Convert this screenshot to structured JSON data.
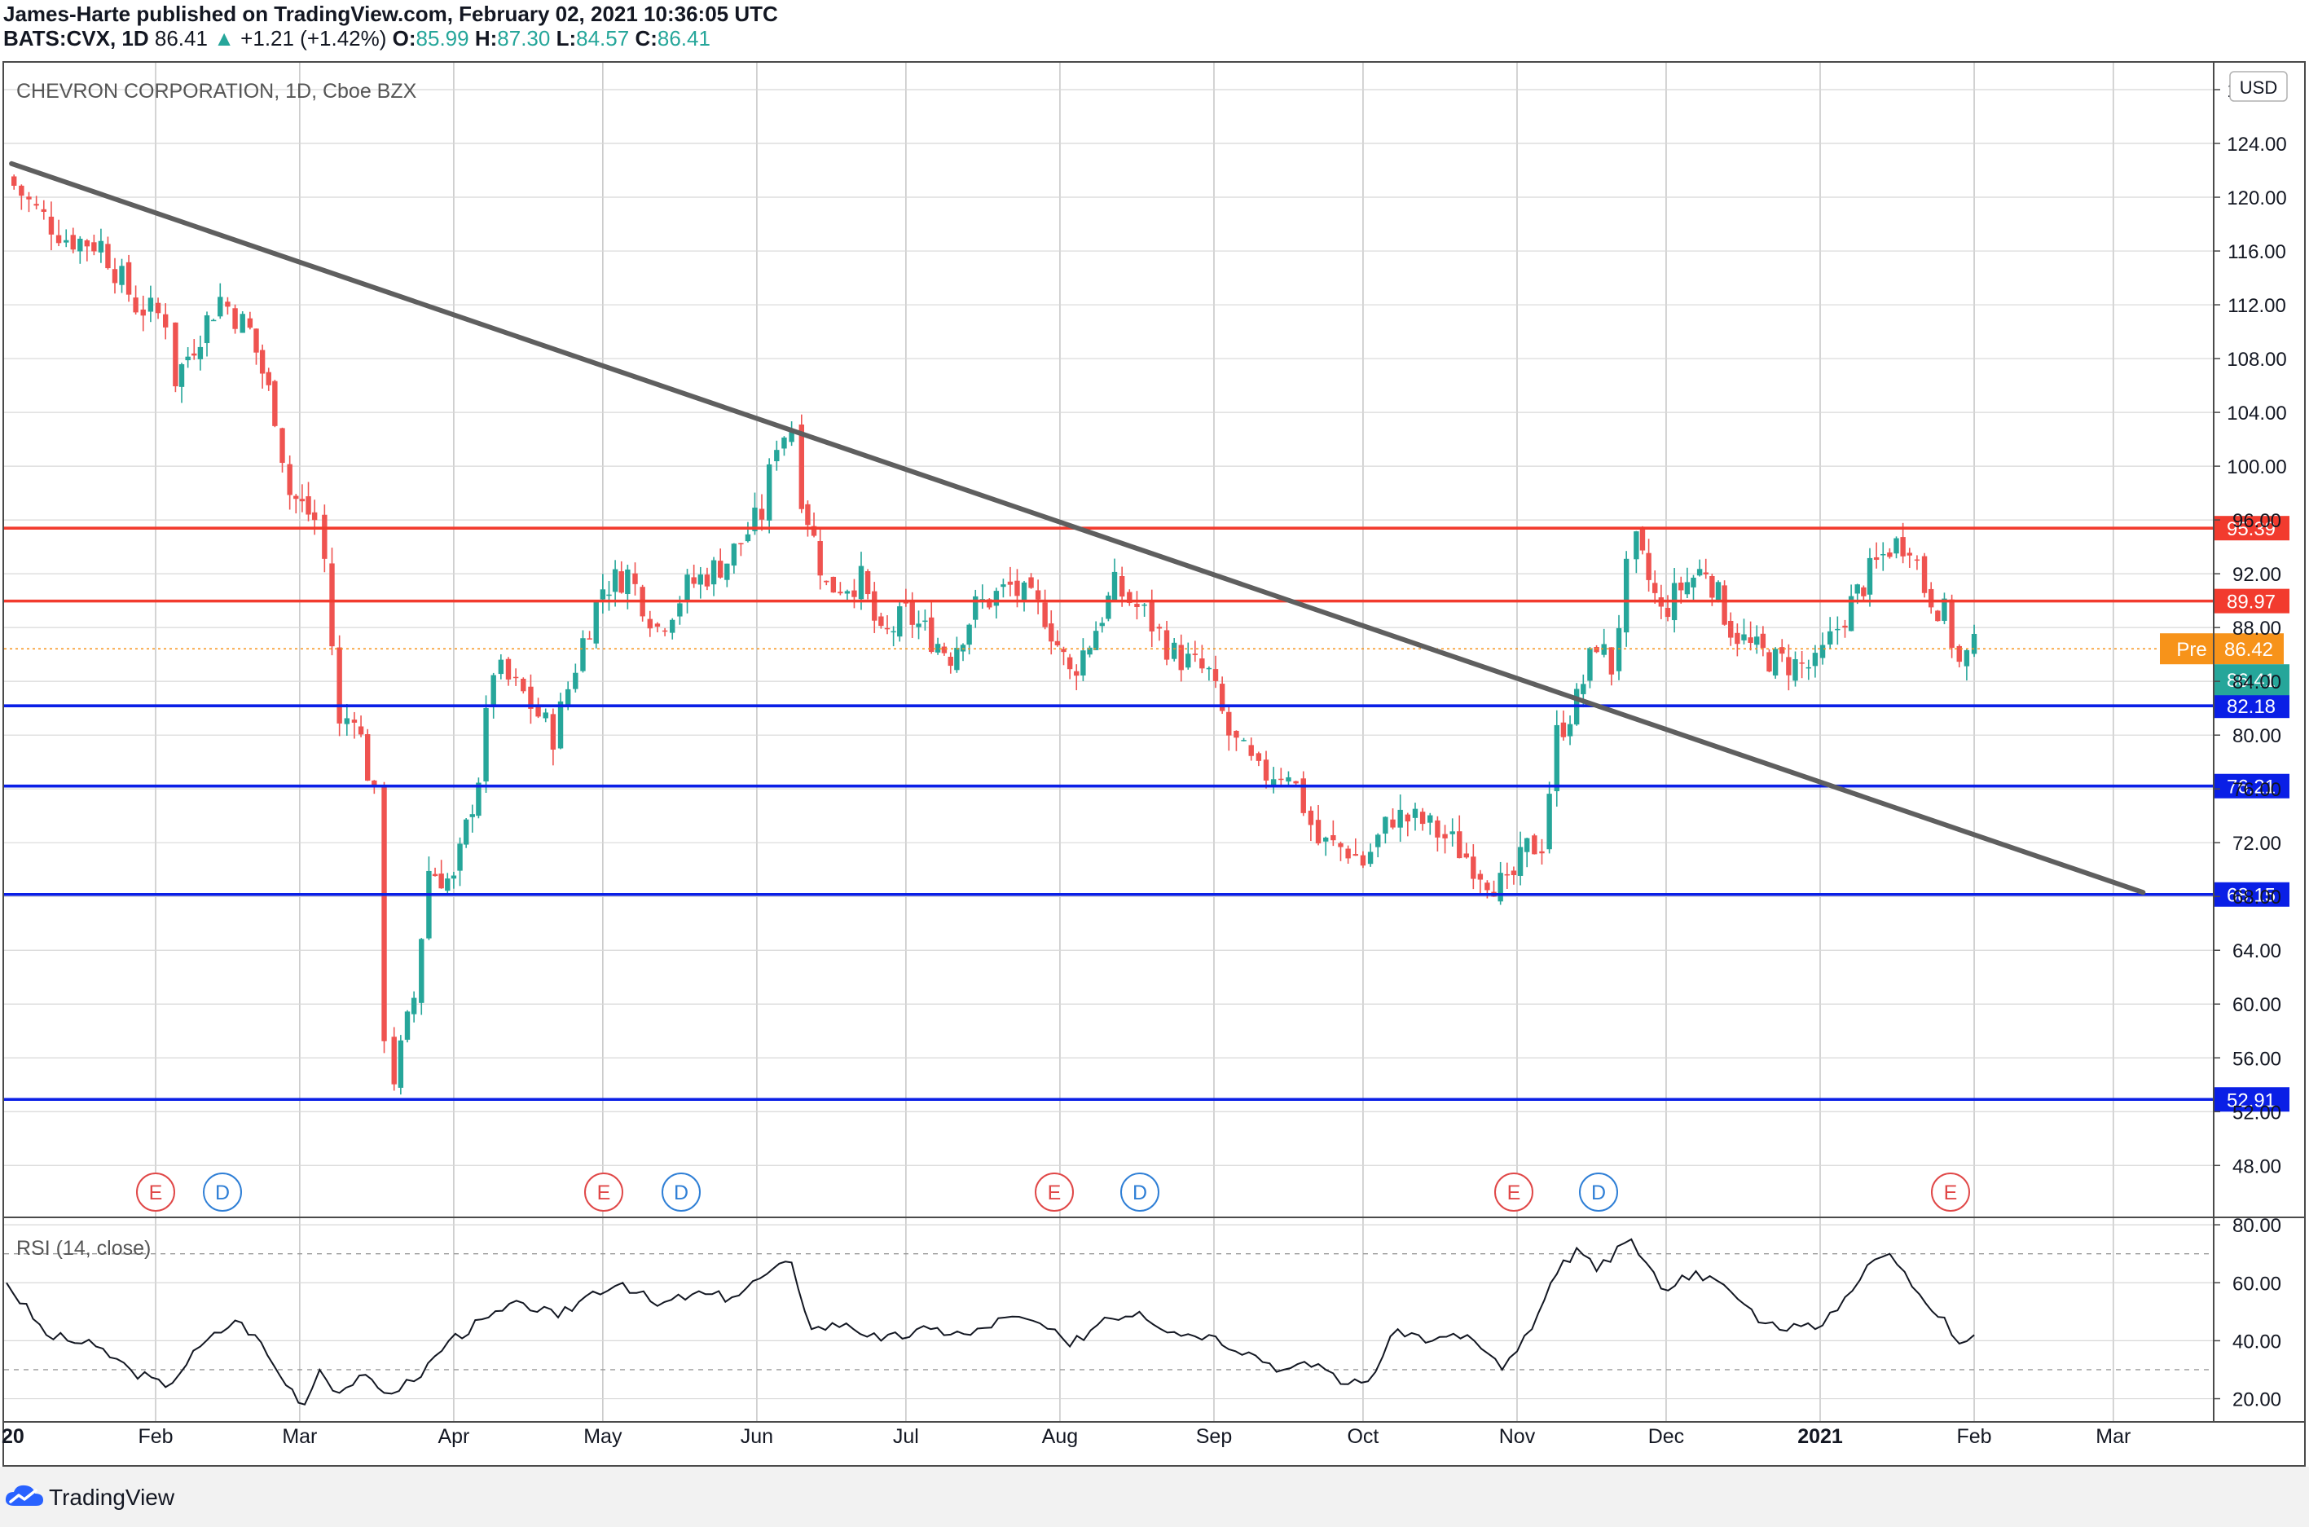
{
  "header": {
    "publisher_line": "James-Harte published on TradingView.com, February 02, 2021 10:36:05 UTC",
    "symbol": "BATS:CVX, 1D",
    "last": "86.41",
    "change": "+1.21 (+1.42%)",
    "open_label": "O:",
    "open": "85.99",
    "high_label": "H:",
    "high": "87.30",
    "low_label": "L:",
    "low": "84.57",
    "close_label": "C:",
    "close": "86.41"
  },
  "chart_title": "CHEVRON CORPORATION, 1D, Cboe BZX",
  "currency_button": "USD",
  "rsi_label": "RSI (14, close)",
  "footer_brand": "TradingView",
  "colors": {
    "up": "#26a69a",
    "down": "#ef5350",
    "resistance": "#f23b2e",
    "support": "#0a1fe6",
    "trendline": "#5f5f5f",
    "pre_badge": "#f7931a"
  },
  "chart_data": [
    {
      "type": "candlestick",
      "title": "CHEVRON CORPORATION, 1D, Cboe BZX",
      "x_tick_labels": [
        "20",
        "Feb",
        "Mar",
        "Apr",
        "May",
        "Jun",
        "Jul",
        "Aug",
        "Sep",
        "Oct",
        "Nov",
        "Dec",
        "2021",
        "Feb",
        "Mar"
      ],
      "y_tick_labels": [
        "128.00",
        "124.00",
        "120.00",
        "116.00",
        "112.00",
        "108.00",
        "104.00",
        "100.00",
        "96.00",
        "92.00",
        "88.00",
        "84.00",
        "80.00",
        "76.00",
        "72.00",
        "68.00",
        "64.00",
        "60.00",
        "56.00",
        "52.00",
        "48.00"
      ],
      "ylim": [
        44.2,
        130.0
      ],
      "grid": true,
      "price_series_approx": [
        [
          "2020-01-02",
          121.5
        ],
        [
          "2020-01-08",
          119.0
        ],
        [
          "2020-01-14",
          117.0
        ],
        [
          "2020-01-21",
          116.5
        ],
        [
          "2020-01-28",
          112.0
        ],
        [
          "2020-02-03",
          111.0
        ],
        [
          "2020-02-05",
          106.5
        ],
        [
          "2020-02-10",
          110.0
        ],
        [
          "2020-02-14",
          112.5
        ],
        [
          "2020-02-20",
          110.0
        ],
        [
          "2020-02-25",
          104.0
        ],
        [
          "2020-02-28",
          98.0
        ],
        [
          "2020-03-04",
          96.0
        ],
        [
          "2020-03-06",
          93.0
        ],
        [
          "2020-03-09",
          80.5
        ],
        [
          "2020-03-12",
          82.0
        ],
        [
          "2020-03-16",
          75.0
        ],
        [
          "2020-03-18",
          58.0
        ],
        [
          "2020-03-20",
          54.5
        ],
        [
          "2020-03-24",
          60.5
        ],
        [
          "2020-03-27",
          70.0
        ],
        [
          "2020-04-01",
          69.0
        ],
        [
          "2020-04-06",
          77.0
        ],
        [
          "2020-04-09",
          85.0
        ],
        [
          "2020-04-15",
          83.0
        ],
        [
          "2020-04-21",
          80.0
        ],
        [
          "2020-04-27",
          87.0
        ],
        [
          "2020-05-01",
          91.0
        ],
        [
          "2020-05-06",
          92.0
        ],
        [
          "2020-05-12",
          88.0
        ],
        [
          "2020-05-18",
          91.0
        ],
        [
          "2020-05-26",
          93.0
        ],
        [
          "2020-06-02",
          96.5
        ],
        [
          "2020-06-05",
          102.0
        ],
        [
          "2020-06-08",
          103.0
        ],
        [
          "2020-06-10",
          98.0
        ],
        [
          "2020-06-15",
          91.0
        ],
        [
          "2020-06-22",
          91.5
        ],
        [
          "2020-06-26",
          87.0
        ],
        [
          "2020-07-01",
          89.0
        ],
        [
          "2020-07-10",
          86.0
        ],
        [
          "2020-07-15",
          89.5
        ],
        [
          "2020-07-22",
          91.0
        ],
        [
          "2020-07-29",
          89.0
        ],
        [
          "2020-08-03",
          84.5
        ],
        [
          "2020-08-07",
          87.0
        ],
        [
          "2020-08-12",
          91.0
        ],
        [
          "2020-08-18",
          89.0
        ],
        [
          "2020-08-24",
          86.0
        ],
        [
          "2020-08-31",
          84.5
        ],
        [
          "2020-09-04",
          80.0
        ],
        [
          "2020-09-10",
          77.0
        ],
        [
          "2020-09-16",
          77.5
        ],
        [
          "2020-09-22",
          72.0
        ],
        [
          "2020-09-28",
          71.5
        ],
        [
          "2020-10-01",
          70.5
        ],
        [
          "2020-10-07",
          74.0
        ],
        [
          "2020-10-13",
          73.5
        ],
        [
          "2020-10-19",
          72.0
        ],
        [
          "2020-10-26",
          69.5
        ],
        [
          "2020-10-30",
          68.5
        ],
        [
          "2020-11-03",
          71.5
        ],
        [
          "2020-11-06",
          72.0
        ],
        [
          "2020-11-09",
          80.0
        ],
        [
          "2020-11-13",
          82.5
        ],
        [
          "2020-11-17",
          87.0
        ],
        [
          "2020-11-20",
          85.0
        ],
        [
          "2020-11-23",
          92.0
        ],
        [
          "2020-11-25",
          94.0
        ],
        [
          "2020-11-30",
          89.0
        ],
        [
          "2020-12-04",
          91.0
        ],
        [
          "2020-12-09",
          92.5
        ],
        [
          "2020-12-14",
          88.0
        ],
        [
          "2020-12-18",
          86.5
        ],
        [
          "2020-12-23",
          85.5
        ],
        [
          "2020-12-31",
          85.0
        ],
        [
          "2021-01-06",
          89.0
        ],
        [
          "2021-01-11",
          92.0
        ],
        [
          "2021-01-15",
          94.0
        ],
        [
          "2021-01-19",
          94.5
        ],
        [
          "2021-01-22",
          91.0
        ],
        [
          "2021-01-26",
          89.0
        ],
        [
          "2021-01-29",
          85.2
        ],
        [
          "2021-02-01",
          86.4
        ]
      ],
      "horizontal_levels": [
        {
          "value": 95.39,
          "label": "95.39",
          "kind": "resistance"
        },
        {
          "value": 89.97,
          "label": "89.97",
          "kind": "resistance"
        },
        {
          "value": 82.18,
          "label": "82.18",
          "kind": "support"
        },
        {
          "value": 76.21,
          "label": "76.21",
          "kind": "support"
        },
        {
          "value": 68.15,
          "label": "68.15",
          "kind": "support"
        },
        {
          "value": 52.91,
          "label": "52.91",
          "kind": "support"
        }
      ],
      "trendline": {
        "from": [
          "2020-01-03",
          122.5
        ],
        "to": [
          "2021-03-07",
          68.3
        ]
      },
      "price_badges": [
        {
          "label": "Pre",
          "value": "86.42"
        },
        {
          "label": "",
          "value": "86.41"
        }
      ],
      "event_markers": [
        {
          "letter": "E",
          "month": "Feb"
        },
        {
          "letter": "D",
          "month": "Feb"
        },
        {
          "letter": "E",
          "month": "May"
        },
        {
          "letter": "D",
          "month": "May"
        },
        {
          "letter": "E",
          "month": "Aug"
        },
        {
          "letter": "D",
          "month": "Aug"
        },
        {
          "letter": "E",
          "month": "Nov"
        },
        {
          "letter": "D",
          "month": "Nov"
        },
        {
          "letter": "E",
          "month": "Feb"
        }
      ]
    },
    {
      "type": "line",
      "title": "RSI (14, close)",
      "y_tick_labels": [
        "80.00",
        "60.00",
        "40.00",
        "20.00"
      ],
      "ylim": [
        12.0,
        82.0
      ],
      "reference_lines": [
        70,
        30
      ],
      "rsi_series_approx": [
        [
          "2020-01-02",
          60
        ],
        [
          "2020-01-10",
          42
        ],
        [
          "2020-01-20",
          38
        ],
        [
          "2020-01-27",
          30
        ],
        [
          "2020-02-03",
          24
        ],
        [
          "2020-02-10",
          38
        ],
        [
          "2020-02-17",
          47
        ],
        [
          "2020-02-21",
          42
        ],
        [
          "2020-02-26",
          28
        ],
        [
          "2020-03-02",
          18
        ],
        [
          "2020-03-05",
          30
        ],
        [
          "2020-03-09",
          22
        ],
        [
          "2020-03-13",
          28
        ],
        [
          "2020-03-18",
          22
        ],
        [
          "2020-03-24",
          26
        ],
        [
          "2020-03-31",
          40
        ],
        [
          "2020-04-08",
          48
        ],
        [
          "2020-04-15",
          53
        ],
        [
          "2020-04-22",
          48
        ],
        [
          "2020-04-29",
          57
        ],
        [
          "2020-05-05",
          60
        ],
        [
          "2020-05-12",
          52
        ],
        [
          "2020-05-19",
          56
        ],
        [
          "2020-05-27",
          55
        ],
        [
          "2020-06-03",
          63
        ],
        [
          "2020-06-08",
          67
        ],
        [
          "2020-06-12",
          44
        ],
        [
          "2020-06-19",
          46
        ],
        [
          "2020-06-26",
          40
        ],
        [
          "2020-07-06",
          44
        ],
        [
          "2020-07-14",
          42
        ],
        [
          "2020-07-21",
          48
        ],
        [
          "2020-07-28",
          46
        ],
        [
          "2020-08-03",
          38
        ],
        [
          "2020-08-10",
          48
        ],
        [
          "2020-08-17",
          50
        ],
        [
          "2020-08-24",
          43
        ],
        [
          "2020-08-31",
          42
        ],
        [
          "2020-09-08",
          36
        ],
        [
          "2020-09-15",
          30
        ],
        [
          "2020-09-22",
          32
        ],
        [
          "2020-09-28",
          25
        ],
        [
          "2020-10-02",
          26
        ],
        [
          "2020-10-08",
          44
        ],
        [
          "2020-10-15",
          40
        ],
        [
          "2020-10-22",
          42
        ],
        [
          "2020-10-29",
          30
        ],
        [
          "2020-11-04",
          44
        ],
        [
          "2020-11-09",
          63
        ],
        [
          "2020-11-13",
          72
        ],
        [
          "2020-11-17",
          64
        ],
        [
          "2020-11-24",
          75
        ],
        [
          "2020-11-30",
          58
        ],
        [
          "2020-12-07",
          64
        ],
        [
          "2020-12-14",
          57
        ],
        [
          "2020-12-21",
          46
        ],
        [
          "2020-12-31",
          44
        ],
        [
          "2021-01-06",
          55
        ],
        [
          "2021-01-12",
          68
        ],
        [
          "2021-01-15",
          70
        ],
        [
          "2021-01-21",
          56
        ],
        [
          "2021-01-26",
          48
        ],
        [
          "2021-01-29",
          39
        ],
        [
          "2021-02-01",
          42
        ]
      ]
    }
  ]
}
